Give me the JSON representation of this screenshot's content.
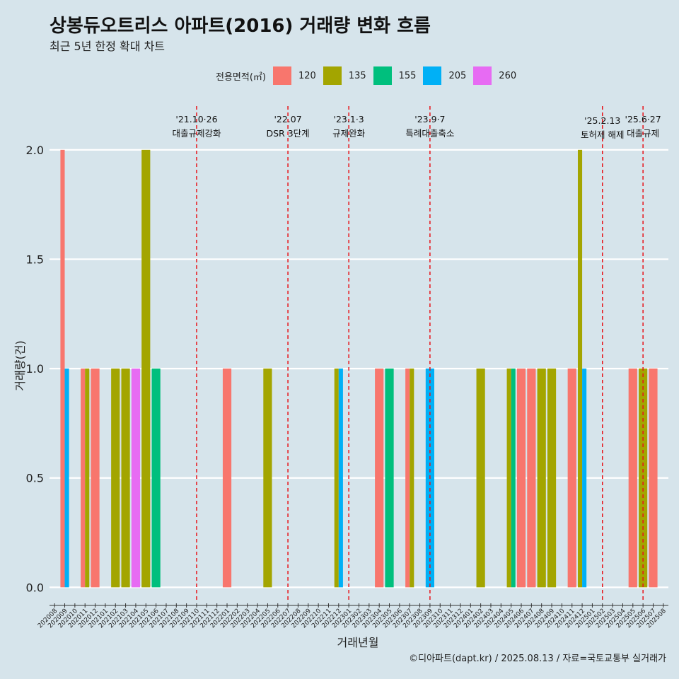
{
  "title": "상봉듀오트리스 아파트(2016) 거래량 변화 흐름",
  "subtitle": "최근 5년 한정 확대 차트",
  "caption": "©디아파트(dapt.kr) / 2025.08.13 / 자료=국토교통부 실거래가",
  "legend": {
    "title": "전용면적(㎡)",
    "items": [
      {
        "label": "120",
        "color": "#F8766D"
      },
      {
        "label": "135",
        "color": "#A3A500"
      },
      {
        "label": "155",
        "color": "#00BF7D"
      },
      {
        "label": "205",
        "color": "#00B0F6"
      },
      {
        "label": "260",
        "color": "#E76BF3"
      }
    ]
  },
  "chart_data": {
    "type": "bar",
    "xlabel": "거래년월",
    "ylabel": "거래량(건)",
    "ylim": [
      -0.07,
      2.2
    ],
    "yticks": [
      "0.0",
      "0.5",
      "1.0",
      "1.5",
      "2.0"
    ],
    "grid": true,
    "legend_position": "top",
    "categories": [
      "202008",
      "202009",
      "202010",
      "202011",
      "202012",
      "202101",
      "202102",
      "202103",
      "202104",
      "202105",
      "202106",
      "202107",
      "202108",
      "202109",
      "202110",
      "202111",
      "202112",
      "202201",
      "202202",
      "202203",
      "202204",
      "202205",
      "202206",
      "202207",
      "202208",
      "202209",
      "202210",
      "202211",
      "202212",
      "202301",
      "202302",
      "202303",
      "202304",
      "202305",
      "202306",
      "202307",
      "202308",
      "202309",
      "202310",
      "202311",
      "202312",
      "202401",
      "202402",
      "202403",
      "202404",
      "202405",
      "202406",
      "202407",
      "202408",
      "202409",
      "202410",
      "202411",
      "202412",
      "202501",
      "202502",
      "202503",
      "202504",
      "202505",
      "202506",
      "202507",
      "202508"
    ],
    "series": [
      {
        "name": "120",
        "color": "#F8766D",
        "points": [
          [
            "202009",
            2
          ],
          [
            "202011",
            1
          ],
          [
            "202012",
            1
          ],
          [
            "202201",
            1
          ],
          [
            "202304",
            1
          ],
          [
            "202307",
            1
          ],
          [
            "202406",
            1
          ],
          [
            "202407",
            1
          ],
          [
            "202411",
            1
          ],
          [
            "202505",
            1
          ],
          [
            "202507",
            1
          ]
        ]
      },
      {
        "name": "135",
        "color": "#A3A500",
        "points": [
          [
            "202011",
            1
          ],
          [
            "202102",
            1
          ],
          [
            "202103",
            1
          ],
          [
            "202105",
            2
          ],
          [
            "202205",
            1
          ],
          [
            "202212",
            1
          ],
          [
            "202307",
            1
          ],
          [
            "202402",
            1
          ],
          [
            "202405",
            1
          ],
          [
            "202408",
            1
          ],
          [
            "202409",
            1
          ],
          [
            "202412",
            2
          ],
          [
            "202506",
            1
          ]
        ]
      },
      {
        "name": "155",
        "color": "#00BF7D",
        "points": [
          [
            "202106",
            1
          ],
          [
            "202305",
            1
          ],
          [
            "202405",
            1
          ]
        ]
      },
      {
        "name": "205",
        "color": "#00B0F6",
        "points": [
          [
            "202009",
            1
          ],
          [
            "202212",
            1
          ],
          [
            "202309",
            1
          ],
          [
            "202412",
            1
          ]
        ]
      },
      {
        "name": "260",
        "color": "#E76BF3",
        "points": [
          [
            "202104",
            1
          ]
        ]
      }
    ],
    "events": [
      {
        "month": "202110",
        "date": "'21.10·26",
        "label": "대출규제강화",
        "small": false
      },
      {
        "month": "202207",
        "date": "'22.07",
        "label": "DSR 3단계",
        "small": false
      },
      {
        "month": "202301",
        "date": "'23.1·3",
        "label": "규제완화",
        "small": false
      },
      {
        "month": "202309",
        "date": "'23.9·7",
        "label": "특례대출축소",
        "small": false
      },
      {
        "month": "202502",
        "date": "'25.2.13",
        "label": "토허제 해제",
        "small": true
      },
      {
        "month": "202506",
        "date": "'25.6·27",
        "label": "대출규제",
        "small": false
      }
    ]
  }
}
